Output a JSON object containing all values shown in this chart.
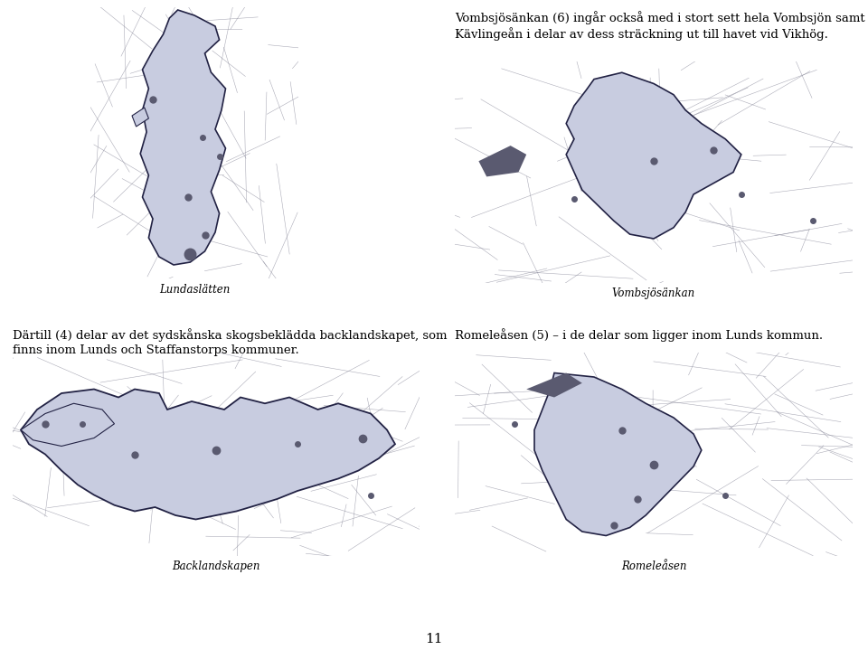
{
  "text_top_right_1": "Vombsjösänkan (6) ingår också med i stort sett hela Vombsjön samt",
  "text_top_right_2": "Kävlingeàn i delar av dess sträckning ut till havet vid Vik hög.",
  "text_mid_left_1": "Därtill (4) delar av det sydskånska skogsbeklädda backlandskapet, som",
  "text_mid_left_2": "finns inom Lunds och Staffanstorps kommuner.",
  "text_mid_right_1": "Romeleåsen (5) – i de delar som ligger inom Lunds kommun.",
  "caption_top_left": "Lundaslätten",
  "caption_top_right": "Vombsjösänkan",
  "caption_bot_left": "Backlandskapen",
  "caption_bot_right": "Romeleåsen",
  "page_number": "11",
  "bg_color": "#FFFFFF",
  "map_yellow": "#FFFF00",
  "region_color": "#C8CCE0",
  "region_edge": "#222244",
  "road_color": "#888899",
  "city_color": "#5A5A70",
  "text_fontsize": 9.5,
  "caption_fontsize": 8.5,
  "page_fontsize": 11
}
